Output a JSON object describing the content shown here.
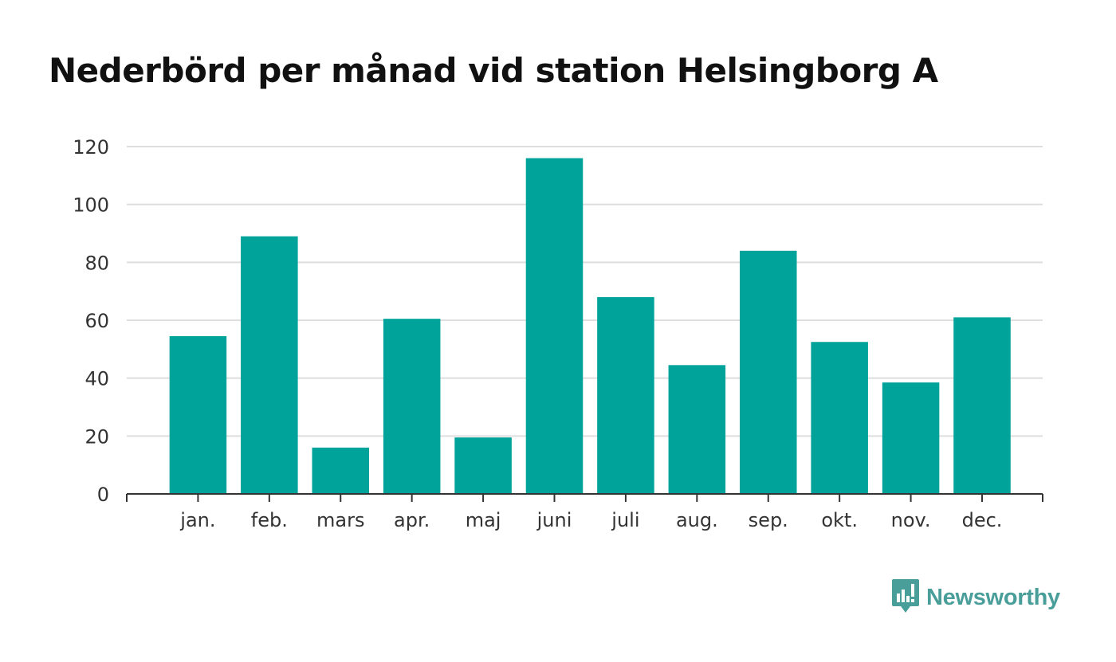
{
  "chart_data": {
    "type": "bar",
    "title": "Nederbörd per månad vid station Helsingborg A",
    "xlabel": "",
    "ylabel": "",
    "categories": [
      "jan.",
      "feb.",
      "mars",
      "apr.",
      "maj",
      "juni",
      "juli",
      "aug.",
      "sep.",
      "okt.",
      "nov.",
      "dec."
    ],
    "values": [
      54.5,
      89,
      16,
      60.5,
      19.5,
      116,
      68,
      44.5,
      84,
      52.5,
      38.5,
      61
    ],
    "ylim": [
      0,
      120
    ],
    "yticks": [
      0,
      20,
      40,
      60,
      80,
      100,
      120
    ],
    "grid": true,
    "legend": "none",
    "bar_color": "#00a39a"
  },
  "brand": {
    "name": "Newsworthy",
    "color": "#4a9e9a",
    "icon": "newsworthy-logo-icon"
  }
}
